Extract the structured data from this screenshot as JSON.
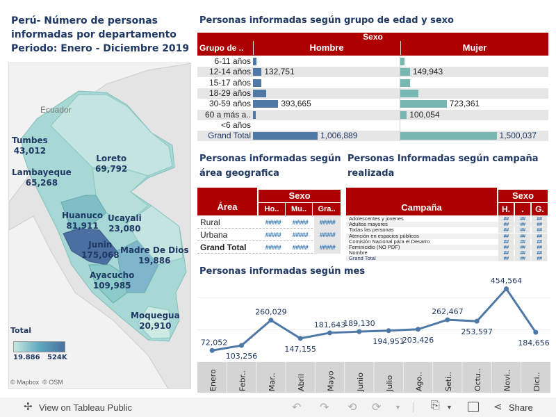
{
  "title_lines": [
    "Perú- Número de personas",
    "informadas por departamento",
    "Periodo: Enero - Diciembre 2019"
  ],
  "map": {
    "neighbor_label": "Ecuador",
    "regions": [
      {
        "name": "Tumbes",
        "value": "43,012"
      },
      {
        "name": "Loreto",
        "value": "69,792"
      },
      {
        "name": "Lambayeque",
        "value": "65,268"
      },
      {
        "name": "Huanuco",
        "value": "81,911"
      },
      {
        "name": "Ucayali",
        "value": "23,080"
      },
      {
        "name": "Junin",
        "value": "175,068"
      },
      {
        "name": "Madre De Dios",
        "value": "19,886"
      },
      {
        "name": "Ayacucho",
        "value": "109,985"
      },
      {
        "name": "Moquegua",
        "value": "20,910"
      }
    ],
    "legend": {
      "title": "Total",
      "min": "19.886",
      "max": "524K",
      "color_low": "#c6e9df",
      "color_high": "#4a6fa0"
    },
    "attribution": [
      "© Mapbox",
      "© OSM"
    ]
  },
  "age_table": {
    "title": "Personas informadas según grupo de edad y sexo",
    "group_header": "Sexo",
    "row_header": "Grupo de ..",
    "columns": [
      "Hombre",
      "Mujer"
    ],
    "colors": {
      "Hombre": "#4e79a7",
      "Mujer": "#76b7b2"
    },
    "rows": [
      {
        "label": "6-11 años",
        "hombre": 55000,
        "mujer": 60000,
        "hombre_label": "",
        "mujer_label": ""
      },
      {
        "label": "12-14 años",
        "hombre": 132751,
        "mujer": 149943,
        "hombre_label": "132,751",
        "mujer_label": "149,943"
      },
      {
        "label": "15-17 años",
        "hombre": 135000,
        "mujer": 150000,
        "hombre_label": "",
        "mujer_label": ""
      },
      {
        "label": "18-29 años",
        "hombre": 205000,
        "mujer": 280000,
        "hombre_label": "",
        "mujer_label": ""
      },
      {
        "label": "30-59 años",
        "hombre": 393665,
        "mujer": 723361,
        "hombre_label": "393,665",
        "mujer_label": "723,361"
      },
      {
        "label": "60 a más a..",
        "hombre": 45000,
        "mujer": 100054,
        "hombre_label": "",
        "mujer_label": "100,054"
      },
      {
        "label": "<6 años",
        "hombre": 0,
        "mujer": 0,
        "hombre_label": "",
        "mujer_label": ""
      },
      {
        "label": "Grand Total",
        "hombre": 1006889,
        "mujer": 1500037,
        "hombre_label": "1,006,889",
        "mujer_label": "1,500,037"
      }
    ]
  },
  "area_table": {
    "title_lines": [
      "Personas informadas según",
      "área geografica"
    ],
    "group_header": "Sexo",
    "row_header": "Área",
    "columns": [
      "Ho..",
      "Mu..",
      "Gra.."
    ],
    "rows": [
      {
        "label": "Rural",
        "cells": [
          "#####",
          "#####",
          "#####"
        ]
      },
      {
        "label": "Urbana",
        "cells": [
          "#####",
          "#####",
          "#####"
        ]
      },
      {
        "label": "Grand Total",
        "cells": [
          "#####",
          "#####",
          "#####"
        ]
      }
    ]
  },
  "campaign_table": {
    "title_lines": [
      "Personas Informadas según campaña",
      "realizada"
    ],
    "group_header": "Sexo",
    "row_header": "Campaña",
    "columns": [
      "H.",
      ".",
      "G."
    ],
    "rows": [
      "Adolescentes y jovenes",
      "Adultos mayores",
      "Todas las personas",
      "Atención en espacios públicos",
      "Comisión Nacional para el Desarro",
      "Feminicidio (NO PDF)",
      "Nombre",
      "Grand Total"
    ],
    "cell": "##"
  },
  "chart_data": {
    "type": "line",
    "title": "Personas informadas según mes",
    "categories": [
      "Enero",
      "Febr..",
      "Mar..",
      "Abril",
      "Mayo",
      "Junio",
      "Julio",
      "Ago..",
      "Seti..",
      "Octu..",
      "Novi..",
      "Dici.."
    ],
    "values": [
      72052,
      103256,
      260029,
      147155,
      181643,
      189130,
      194951,
      203426,
      262467,
      253597,
      454564,
      184656
    ],
    "labels": [
      "72,052",
      "103,256",
      "260,029",
      "147,155",
      "181,643",
      "189,130",
      "194,951",
      "203,426",
      "262,467",
      "253,597",
      "454,564",
      "184,656"
    ],
    "label_pos": [
      "above",
      "below",
      "above",
      "below",
      "above",
      "above",
      "below",
      "below",
      "above",
      "below",
      "above",
      "below"
    ],
    "ylim": [
      0,
      500000
    ],
    "grid": true,
    "color": "#4e79a7"
  },
  "footer": {
    "view_label": "View on Tableau Public",
    "share_label": "Share"
  }
}
